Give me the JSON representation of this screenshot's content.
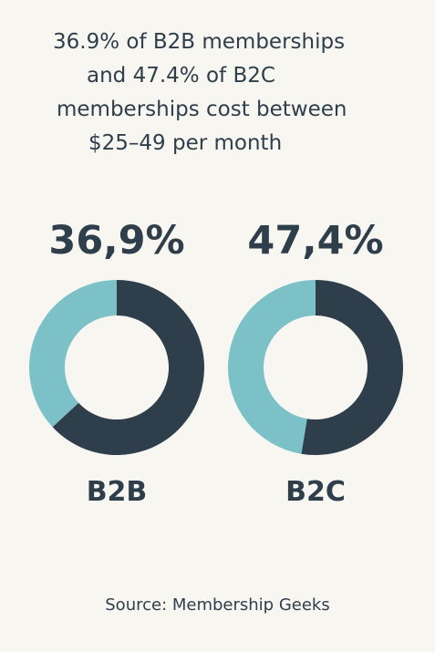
{
  "title": {
    "lines": [
      "36.9% of B2B memberships",
      "and 47.4% of B2C",
      "memberships cost between",
      "$25–49 per month"
    ]
  },
  "chart_data": [
    {
      "type": "pie",
      "category": "B2B",
      "display_label": "36,9%",
      "value": 36.9,
      "remainder": 63.1,
      "colors": {
        "value": "#7dc1c8",
        "remainder": "#2f3e4b"
      }
    },
    {
      "type": "pie",
      "category": "B2C",
      "display_label": "47,4%",
      "value": 47.4,
      "remainder": 52.6,
      "colors": {
        "value": "#7dc1c8",
        "remainder": "#2f3e4b"
      }
    }
  ],
  "source": "Source: Membership Geeks",
  "colors": {
    "background": "#f8f6f1",
    "text": "#2f3e4b",
    "teal": "#7dc1c8",
    "navy": "#2f3e4b"
  }
}
